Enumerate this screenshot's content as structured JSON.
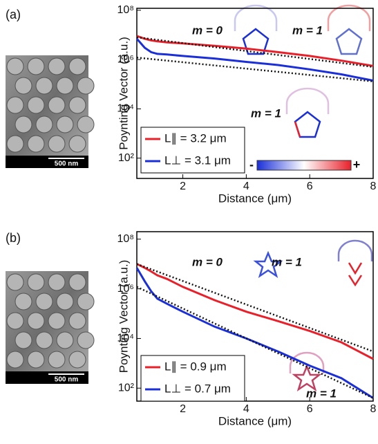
{
  "chart_data": [
    {
      "type": "line",
      "panel_label": "(a)",
      "scale_bar": "500 nm",
      "xlabel": "Distance (μm)",
      "ylabel": "Poynting Vector (a.u.)",
      "xlim": [
        0.55,
        8
      ],
      "xticks": [
        2,
        4,
        6,
        8
      ],
      "ylim": [
        15,
        120000000
      ],
      "log_y": true,
      "yticks": [
        {
          "value": 100,
          "label": "10²"
        },
        {
          "value": 10000,
          "label": "10⁴"
        },
        {
          "value": 1000000,
          "label": "10⁶"
        },
        {
          "value": 100000000,
          "label": "10⁸"
        }
      ],
      "x": [
        0.55,
        0.8,
        1,
        1.2,
        1.5,
        2,
        3,
        4,
        5,
        6,
        7,
        8
      ],
      "series": [
        {
          "name": "L∥ = 3.2 μm",
          "color": "#e8202a",
          "values": [
            9000000,
            7000000,
            6000000,
            5500000,
            5000000,
            4500000,
            3600000,
            2800000,
            2000000,
            1400000,
            900000,
            550000
          ]
        },
        {
          "name": "L⊥ = 3.1 μm",
          "color": "#1a2fd8",
          "values": [
            7000000,
            3000000,
            2000000,
            1700000,
            1600000,
            1400000,
            1100000,
            800000,
            600000,
            400000,
            250000,
            140000
          ]
        }
      ],
      "fits": [
        {
          "color": "#111111",
          "x": [
            0.55,
            8
          ],
          "values": [
            8000000,
            500000
          ]
        },
        {
          "color": "#111111",
          "x": [
            0.55,
            8
          ],
          "values": [
            1200000,
            130000
          ]
        }
      ],
      "annotations": [
        "m = 0",
        "m = 1",
        "m = 1"
      ],
      "colorbar_labels": [
        "-",
        "+"
      ]
    },
    {
      "type": "line",
      "panel_label": "(b)",
      "scale_bar": "500 nm",
      "xlabel": "Distance (μm)",
      "ylabel": "Poynting Vector (a.u.)",
      "xlim": [
        0.55,
        8
      ],
      "xticks": [
        2,
        4,
        6,
        8
      ],
      "ylim": [
        30,
        200000000
      ],
      "log_y": true,
      "yticks": [
        {
          "value": 100,
          "label": "10²"
        },
        {
          "value": 10000,
          "label": "10⁴"
        },
        {
          "value": 1000000,
          "label": "10⁶"
        },
        {
          "value": 100000000,
          "label": "10⁸"
        }
      ],
      "x": [
        0.55,
        0.8,
        1,
        1.2,
        1.5,
        2,
        3,
        4,
        5,
        6,
        7,
        8
      ],
      "series": [
        {
          "name": "L∥ = 0.9 μm",
          "color": "#e8202a",
          "values": [
            10000000,
            7000000,
            5000000,
            3500000,
            2500000,
            1200000,
            350000,
            120000,
            50000,
            20000,
            7000,
            1500
          ]
        },
        {
          "name": "L⊥ = 0.7 μm",
          "color": "#1a2fd8",
          "values": [
            7000000,
            2000000,
            800000,
            400000,
            250000,
            120000,
            30000,
            10000,
            3000,
            800,
            250,
            40
          ]
        }
      ],
      "fits": [
        {
          "color": "#111111",
          "x": [
            0.55,
            8
          ],
          "values": [
            10000000,
            3000
          ]
        },
        {
          "color": "#111111",
          "x": [
            0.55,
            8
          ],
          "values": [
            1200000,
            40
          ]
        }
      ],
      "annotations": [
        "m = 0",
        "m = 1",
        "m = 1"
      ]
    }
  ]
}
